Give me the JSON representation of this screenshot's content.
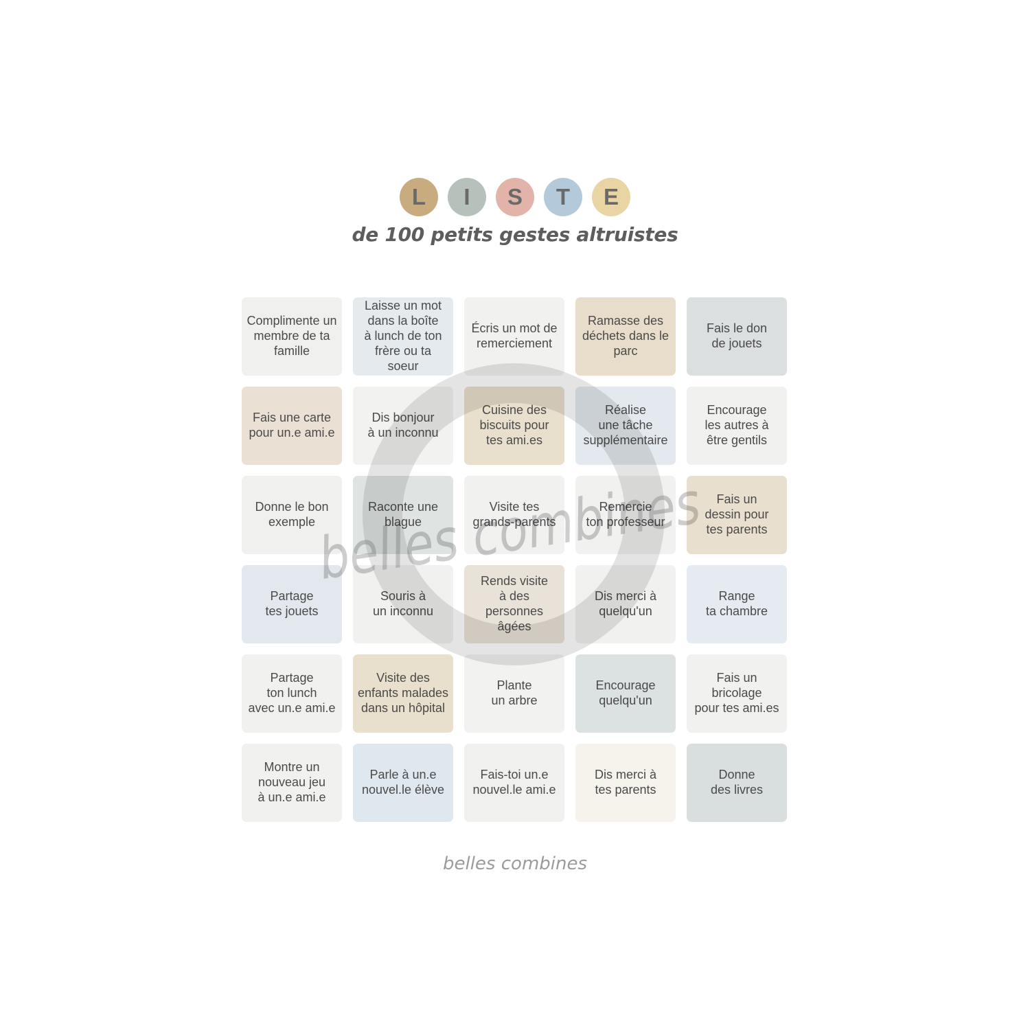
{
  "title": {
    "word": "LISTE",
    "letters": [
      {
        "letter": "L",
        "circle_color": "#c9ab80"
      },
      {
        "letter": "I",
        "circle_color": "#b7c1bb"
      },
      {
        "letter": "S",
        "circle_color": "#e2b4a9"
      },
      {
        "letter": "T",
        "circle_color": "#b4cadb"
      },
      {
        "letter": "E",
        "circle_color": "#e9d4a4"
      }
    ],
    "letter_text_color": "#6a6a6a",
    "subtitle": "de 100 petits gestes altruistes"
  },
  "watermark": {
    "text": "belles combines",
    "ring_color": "#8d8d8d",
    "text_color": "#8a8a8a"
  },
  "footer": {
    "text": "belles combines"
  },
  "grid": {
    "rows": 6,
    "cols": 5,
    "tiles": [
      {
        "text": "Complimente un\nmembre de ta\nfamille",
        "bg": "#f0f0ee"
      },
      {
        "text": "Laisse un mot\ndans la boîte\nà lunch de ton\nfrère ou ta\nsoeur",
        "bg": "#e4eaee"
      },
      {
        "text": "Écris un mot de\nremerciement",
        "bg": "#f1f1ef"
      },
      {
        "text": "Ramasse des\ndéchets dans le\nparc",
        "bg": "#e7ddca"
      },
      {
        "text": "Fais le don\nde jouets",
        "bg": "#dbdfe0"
      },
      {
        "text": "Fais une carte\npour un.e ami.e",
        "bg": "#eae1d4"
      },
      {
        "text": "Dis bonjour\nà un inconnu",
        "bg": "#f2f2f0"
      },
      {
        "text": "Cuisine des\nbiscuits pour\ntes ami.es",
        "bg": "#e9dfcd"
      },
      {
        "text": "Réalise\nune tâche\nsupplémentaire",
        "bg": "#e3e9ee"
      },
      {
        "text": "Encourage\nles autres à\nêtre gentils",
        "bg": "#f1f1ef"
      },
      {
        "text": "Donne le bon\nexemple",
        "bg": "#f0f0ee"
      },
      {
        "text": "Raconte une\nblague",
        "bg": "#dfe4e3"
      },
      {
        "text": "Visite tes\ngrands-parents",
        "bg": "#f1f1f0"
      },
      {
        "text": "Remercie\nton professeur",
        "bg": "#f1f1f0"
      },
      {
        "text": "Fais un\ndessin pour\ntes parents",
        "bg": "#e9dfce"
      },
      {
        "text": "Partage\ntes jouets",
        "bg": "#e2e8ee"
      },
      {
        "text": "Souris à\nun inconnu",
        "bg": "#f1f1f0"
      },
      {
        "text": "Rends visite\nà des\npersonnes âgées",
        "bg": "#e9e2d8"
      },
      {
        "text": "Dis merci à\nquelqu'un",
        "bg": "#f1f1f0"
      },
      {
        "text": "Range\nta chambre",
        "bg": "#e5ebf0"
      },
      {
        "text": "Partage\nton lunch\navec un.e ami.e",
        "bg": "#f1f1f0"
      },
      {
        "text": "Visite des\nenfants malades\ndans un hôpital",
        "bg": "#e8dfcc"
      },
      {
        "text": "Plante\nun arbre",
        "bg": "#f2f2f1"
      },
      {
        "text": "Encourage\nquelqu'un",
        "bg": "#dce1e2"
      },
      {
        "text": "Fais un\nbricolage\npour tes ami.es",
        "bg": "#f1f1f0"
      },
      {
        "text": "Montre un\nnouveau jeu\nà un.e ami.e",
        "bg": "#f1f1ef"
      },
      {
        "text": "Parle à un.e\nnouvel.le élève",
        "bg": "#dfe8ee"
      },
      {
        "text": "Fais-toi un.e\nnouvel.le ami.e",
        "bg": "#f0f0ef"
      },
      {
        "text": "Dis merci à\ntes parents",
        "bg": "#f5f3ec"
      },
      {
        "text": "Donne\ndes livres",
        "bg": "#d9dedf"
      }
    ]
  }
}
